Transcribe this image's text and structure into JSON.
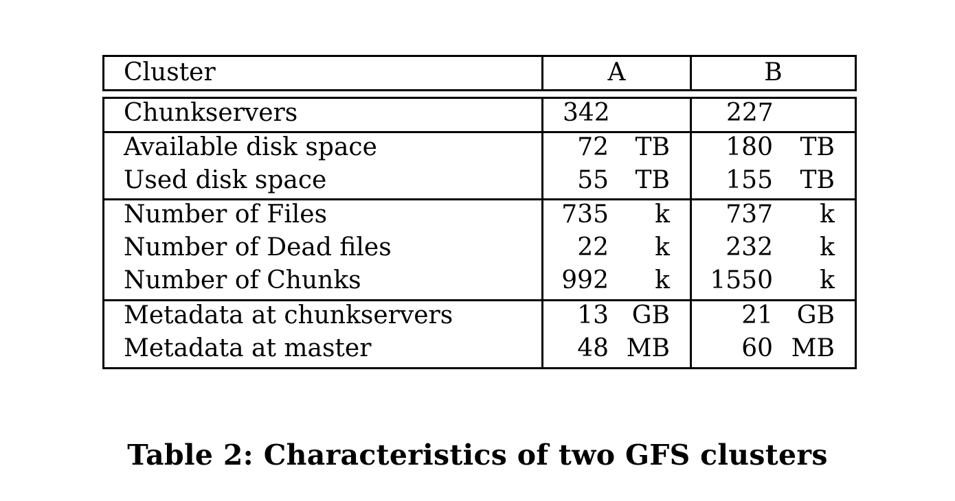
{
  "table": {
    "header": {
      "label": "Cluster",
      "col_a": "A",
      "col_b": "B"
    },
    "rows": [
      {
        "label": "Chunkservers",
        "a_value": "342",
        "a_unit": "",
        "b_value": "227",
        "b_unit": ""
      },
      {
        "label": "Available disk space",
        "a_value": "72",
        "a_unit": "TB",
        "b_value": "180",
        "b_unit": "TB"
      },
      {
        "label": "Used disk space",
        "a_value": "55",
        "a_unit": "TB",
        "b_value": "155",
        "b_unit": "TB"
      },
      {
        "label": "Number of Files",
        "a_value": "735",
        "a_unit": "k",
        "b_value": "737",
        "b_unit": "k"
      },
      {
        "label": "Number of Dead files",
        "a_value": "22",
        "a_unit": "k",
        "b_value": "232",
        "b_unit": "k"
      },
      {
        "label": "Number of Chunks",
        "a_value": "992",
        "a_unit": "k",
        "b_value": "1550",
        "b_unit": "k"
      },
      {
        "label": "Metadata at chunkservers",
        "a_value": "13",
        "a_unit": "GB",
        "b_value": "21",
        "b_unit": "GB"
      },
      {
        "label": "Metadata at master",
        "a_value": "48",
        "a_unit": "MB",
        "b_value": "60",
        "b_unit": "MB"
      }
    ]
  },
  "caption": "Table 2: Characteristics of two GFS clusters"
}
